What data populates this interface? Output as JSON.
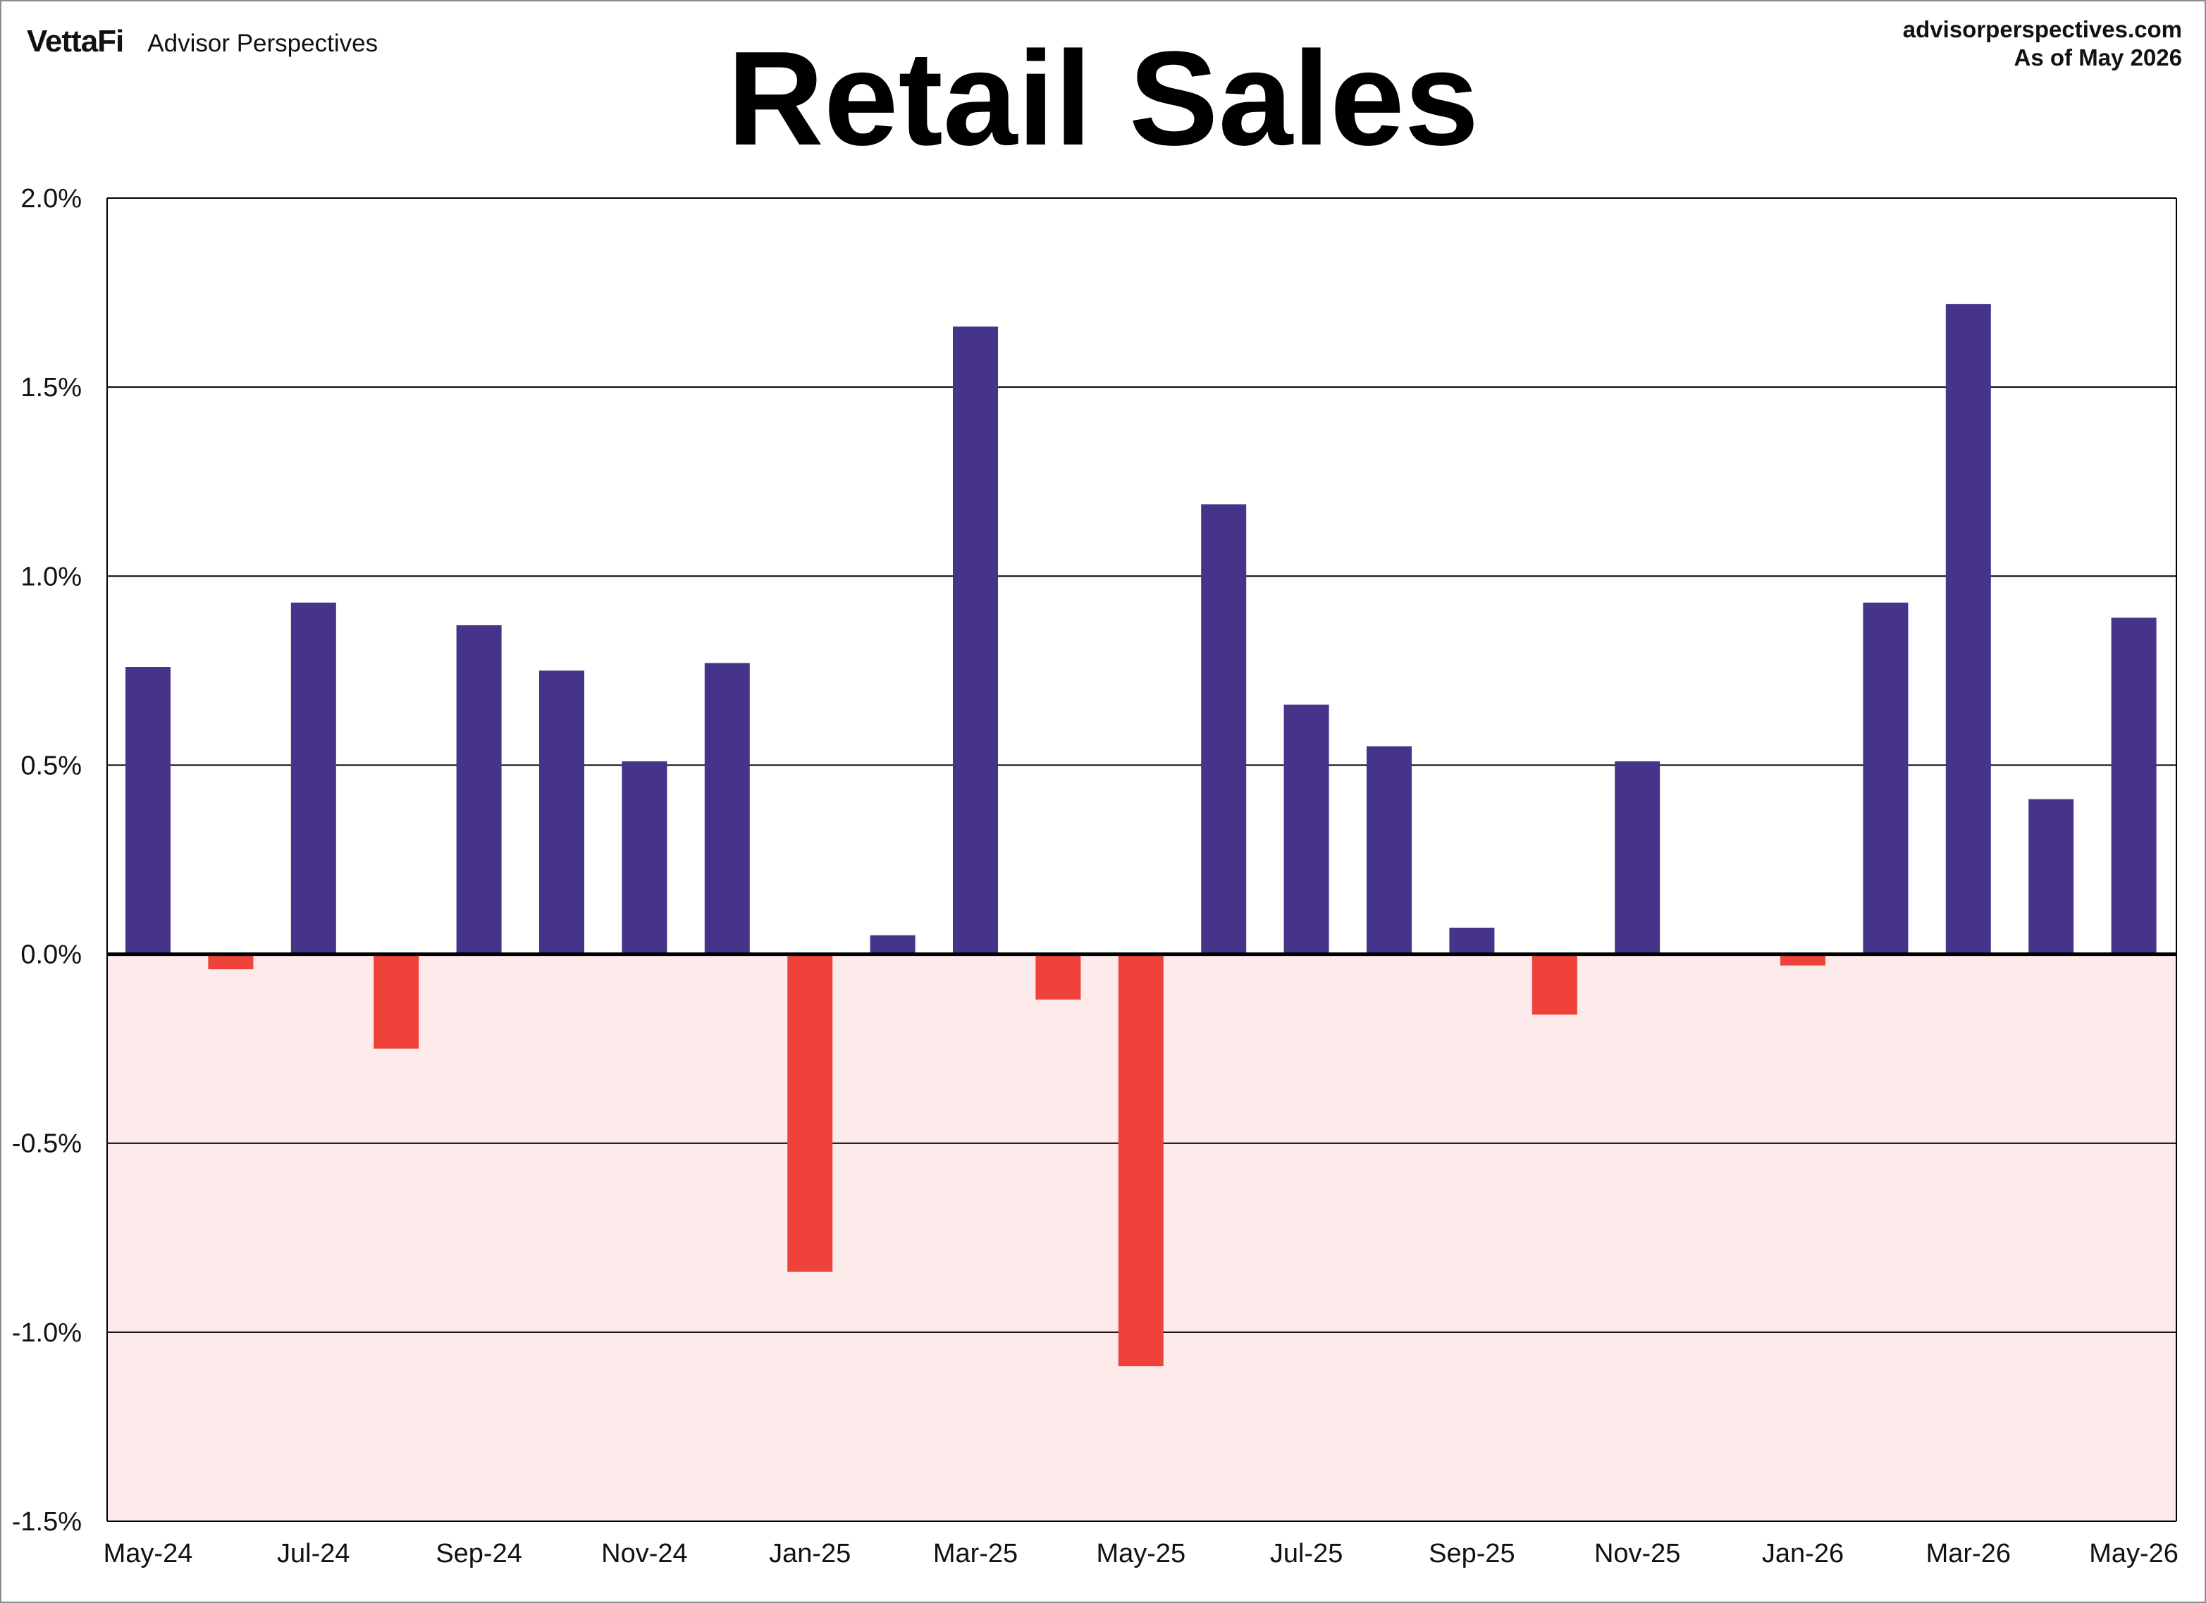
{
  "header": {
    "logo_text": "VettaFi",
    "brand_name": "Advisor Perspectives",
    "site": "advisorperspectives.com",
    "as_of": "As of May 2026"
  },
  "colors": {
    "positive_bar": "#46338a",
    "negative_bar": "#ef423b",
    "negative_region": "#fdeaea",
    "gridline": "#000000"
  },
  "chart_data": {
    "type": "bar",
    "title": "Retail Sales",
    "xlabel": "",
    "ylabel": "",
    "ylim": [
      -1.5,
      2.0
    ],
    "y_ticks": [
      2.0,
      1.5,
      1.0,
      0.5,
      0.0,
      -0.5,
      -1.0,
      -1.5
    ],
    "y_tick_labels": [
      "2.0%",
      "1.5%",
      "1.0%",
      "0.5%",
      "0.0%",
      "-0.5%",
      "-1.0%",
      "-1.5%"
    ],
    "grid": true,
    "negative_region_shaded": true,
    "categories": [
      "May-24",
      "Jun-24",
      "Jul-24",
      "Aug-24",
      "Sep-24",
      "Oct-24",
      "Nov-24",
      "Dec-24",
      "Jan-25",
      "Feb-25",
      "Mar-25",
      "Apr-25",
      "May-25",
      "Jun-25",
      "Jul-25",
      "Aug-25",
      "Sep-25",
      "Oct-25",
      "Nov-25",
      "Dec-25",
      "Jan-26",
      "Feb-26",
      "Mar-26",
      "Apr-26",
      "May-26"
    ],
    "x_tick_labels": [
      "May-24",
      "",
      "Jul-24",
      "",
      "Sep-24",
      "",
      "Nov-24",
      "",
      "Jan-25",
      "",
      "Mar-25",
      "",
      "May-25",
      "",
      "Jul-25",
      "",
      "Sep-25",
      "",
      "Nov-25",
      "",
      "Jan-26",
      "",
      "Mar-26",
      "",
      "May-26"
    ],
    "values": [
      0.76,
      -0.04,
      0.93,
      -0.25,
      0.87,
      0.75,
      0.51,
      0.77,
      -0.84,
      0.05,
      1.66,
      -0.12,
      -1.09,
      1.19,
      0.66,
      0.55,
      0.07,
      -0.16,
      0.51,
      0.0,
      -0.03,
      0.93,
      1.72,
      0.41,
      0.89
    ]
  }
}
